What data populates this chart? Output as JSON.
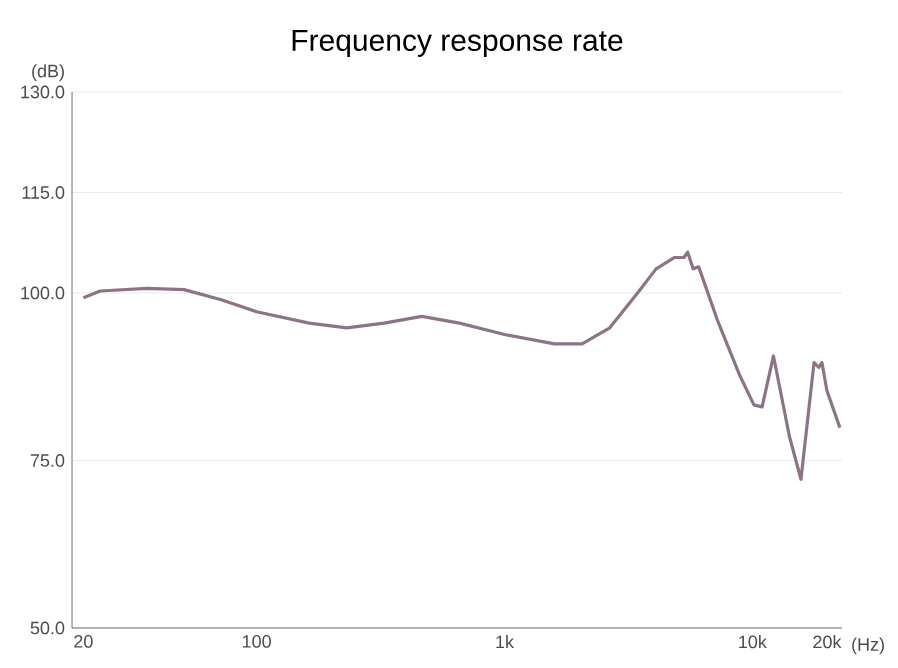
{
  "chart_data": {
    "type": "line",
    "title": "Frequency response rate",
    "xlabel": "(Hz)",
    "ylabel": "(dB)",
    "log": "x",
    "xlim": [
      18,
      23000
    ],
    "ylim": [
      50,
      130
    ],
    "xticks": [
      20,
      100,
      {
        "value": 1000,
        "label": "1k"
      },
      {
        "value": 10000,
        "label": "10k"
      },
      {
        "value": 20000,
        "label": "20k"
      }
    ],
    "yticks": [
      {
        "value": 50,
        "label": "50.0"
      },
      {
        "value": 75,
        "label": "75.0"
      },
      {
        "value": 100,
        "label": "100.0"
      },
      {
        "value": 115,
        "label": "115.0"
      },
      {
        "value": 130,
        "label": "130.0"
      }
    ],
    "grid": "y",
    "marker": "none",
    "line_style": "solid",
    "series": [
      {
        "color": "#8c7486",
        "x": [
          20,
          23.4,
          36,
          51,
          72,
          100,
          163,
          231,
          327,
          464,
          658,
          1000,
          1590,
          2057,
          2660,
          3443,
          4090,
          4862,
          5300,
          5483,
          5770,
          6077,
          7220,
          8870,
          10150,
          10950,
          12170,
          14130,
          15710,
          17740,
          18550,
          19100,
          20000,
          22550
        ],
        "values": [
          99.3,
          100.3,
          100.7,
          100.5,
          99.0,
          97.2,
          95.5,
          94.8,
          95.5,
          96.5,
          95.5,
          93.8,
          92.4,
          92.4,
          94.8,
          100,
          103.6,
          105.3,
          105.3,
          106.1,
          103.6,
          103.9,
          96,
          87.8,
          83.3,
          83,
          90.6,
          78.5,
          72.2,
          89.6,
          88.9,
          89.6,
          85.4,
          79.9
        ]
      }
    ]
  }
}
